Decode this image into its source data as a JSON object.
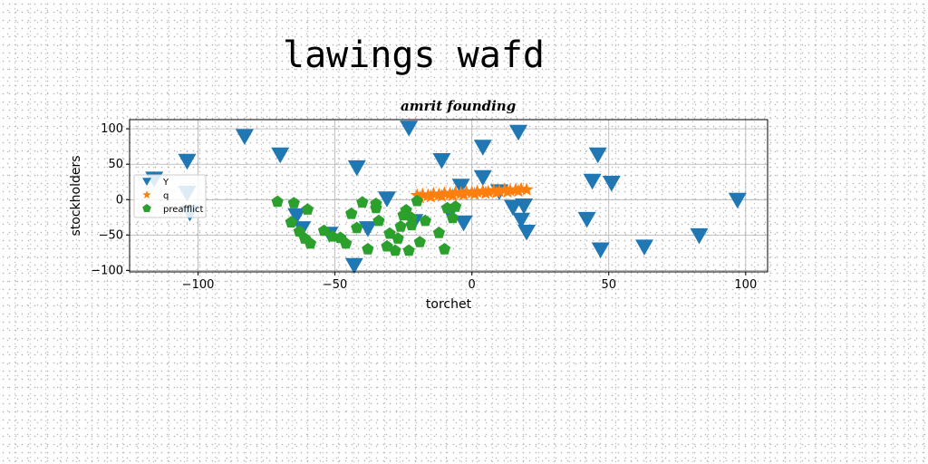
{
  "figure_title": "lawings wafd",
  "chart_data": {
    "type": "scatter",
    "title": "amrit founding",
    "xlabel": "torchet",
    "ylabel": "stockholders",
    "xlim": [
      -125,
      108
    ],
    "ylim": [
      -102,
      113
    ],
    "xticks": [
      -100,
      -50,
      0,
      50,
      100
    ],
    "yticks": [
      -100,
      -50,
      0,
      50,
      100
    ],
    "xtick_labels": [
      "−100",
      "−50",
      "0",
      "50",
      "100"
    ],
    "ytick_labels": [
      "−100",
      "−50",
      "0",
      "50",
      "100"
    ],
    "grid": true,
    "legend_position": "center-left",
    "series": [
      {
        "name": "Y",
        "marker": "triangle-down",
        "color": "#1f77b4",
        "points": [
          [
            -116,
            30
          ],
          [
            -104,
            55
          ],
          [
            -104,
            10
          ],
          [
            -103,
            -18
          ],
          [
            -83,
            90
          ],
          [
            -70,
            64
          ],
          [
            -64,
            -22
          ],
          [
            -62,
            -40
          ],
          [
            -52,
            -48
          ],
          [
            -43,
            -92
          ],
          [
            -42,
            46
          ],
          [
            -38,
            -40
          ],
          [
            -31,
            2
          ],
          [
            -23,
            102
          ],
          [
            -21,
            -30
          ],
          [
            -11,
            56
          ],
          [
            -8,
            -18
          ],
          [
            -4,
            20
          ],
          [
            -3,
            -32
          ],
          [
            4,
            75
          ],
          [
            4,
            32
          ],
          [
            10,
            12
          ],
          [
            15,
            -10
          ],
          [
            17,
            96
          ],
          [
            18,
            -28
          ],
          [
            19,
            -8
          ],
          [
            20,
            -45
          ],
          [
            42,
            -27
          ],
          [
            44,
            27
          ],
          [
            46,
            64
          ],
          [
            47,
            -70
          ],
          [
            51,
            24
          ],
          [
            63,
            -66
          ],
          [
            83,
            -50
          ],
          [
            97,
            0
          ]
        ]
      },
      {
        "name": "q",
        "marker": "star",
        "color": "#ff7f0e",
        "points": [
          [
            -20,
            6
          ],
          [
            -18,
            7
          ],
          [
            -16,
            6
          ],
          [
            -14,
            8
          ],
          [
            -12,
            7
          ],
          [
            -10,
            9
          ],
          [
            -8,
            8
          ],
          [
            -6,
            10
          ],
          [
            -4,
            9
          ],
          [
            -2,
            11
          ],
          [
            0,
            10
          ],
          [
            2,
            11
          ],
          [
            4,
            12
          ],
          [
            6,
            11
          ],
          [
            8,
            13
          ],
          [
            10,
            12
          ],
          [
            12,
            14
          ],
          [
            14,
            13
          ],
          [
            16,
            14
          ],
          [
            18,
            15
          ],
          [
            20,
            14
          ],
          [
            -19,
            3
          ],
          [
            -15,
            4
          ],
          [
            -11,
            5
          ],
          [
            -7,
            6
          ],
          [
            -3,
            7
          ],
          [
            1,
            8
          ],
          [
            5,
            9
          ],
          [
            9,
            10
          ],
          [
            13,
            11
          ],
          [
            17,
            12
          ]
        ]
      },
      {
        "name": "preafflict",
        "marker": "pentagon",
        "color": "#2ca02c",
        "points": [
          [
            -71,
            -3
          ],
          [
            -65,
            -5
          ],
          [
            -66,
            -32
          ],
          [
            -63,
            -45
          ],
          [
            -61,
            -55
          ],
          [
            -59,
            -62
          ],
          [
            -60,
            -14
          ],
          [
            -54,
            -44
          ],
          [
            -51,
            -52
          ],
          [
            -48,
            -54
          ],
          [
            -46,
            -62
          ],
          [
            -44,
            -20
          ],
          [
            -40,
            -4
          ],
          [
            -38,
            -70
          ],
          [
            -35,
            -6
          ],
          [
            -34,
            -30
          ],
          [
            -31,
            -66
          ],
          [
            -30,
            -48
          ],
          [
            -28,
            -72
          ],
          [
            -27,
            -55
          ],
          [
            -26,
            -38
          ],
          [
            -25,
            -22
          ],
          [
            -24,
            -15
          ],
          [
            -23,
            -72
          ],
          [
            -22,
            -36
          ],
          [
            -20,
            -2
          ],
          [
            -19,
            -60
          ],
          [
            -17,
            -30
          ],
          [
            -12,
            -47
          ],
          [
            -10,
            -70
          ],
          [
            -9,
            -12
          ],
          [
            -7,
            -26
          ],
          [
            -6,
            -10
          ],
          [
            -22,
            -26
          ],
          [
            -35,
            -12
          ],
          [
            -42,
            -40
          ]
        ]
      }
    ]
  }
}
